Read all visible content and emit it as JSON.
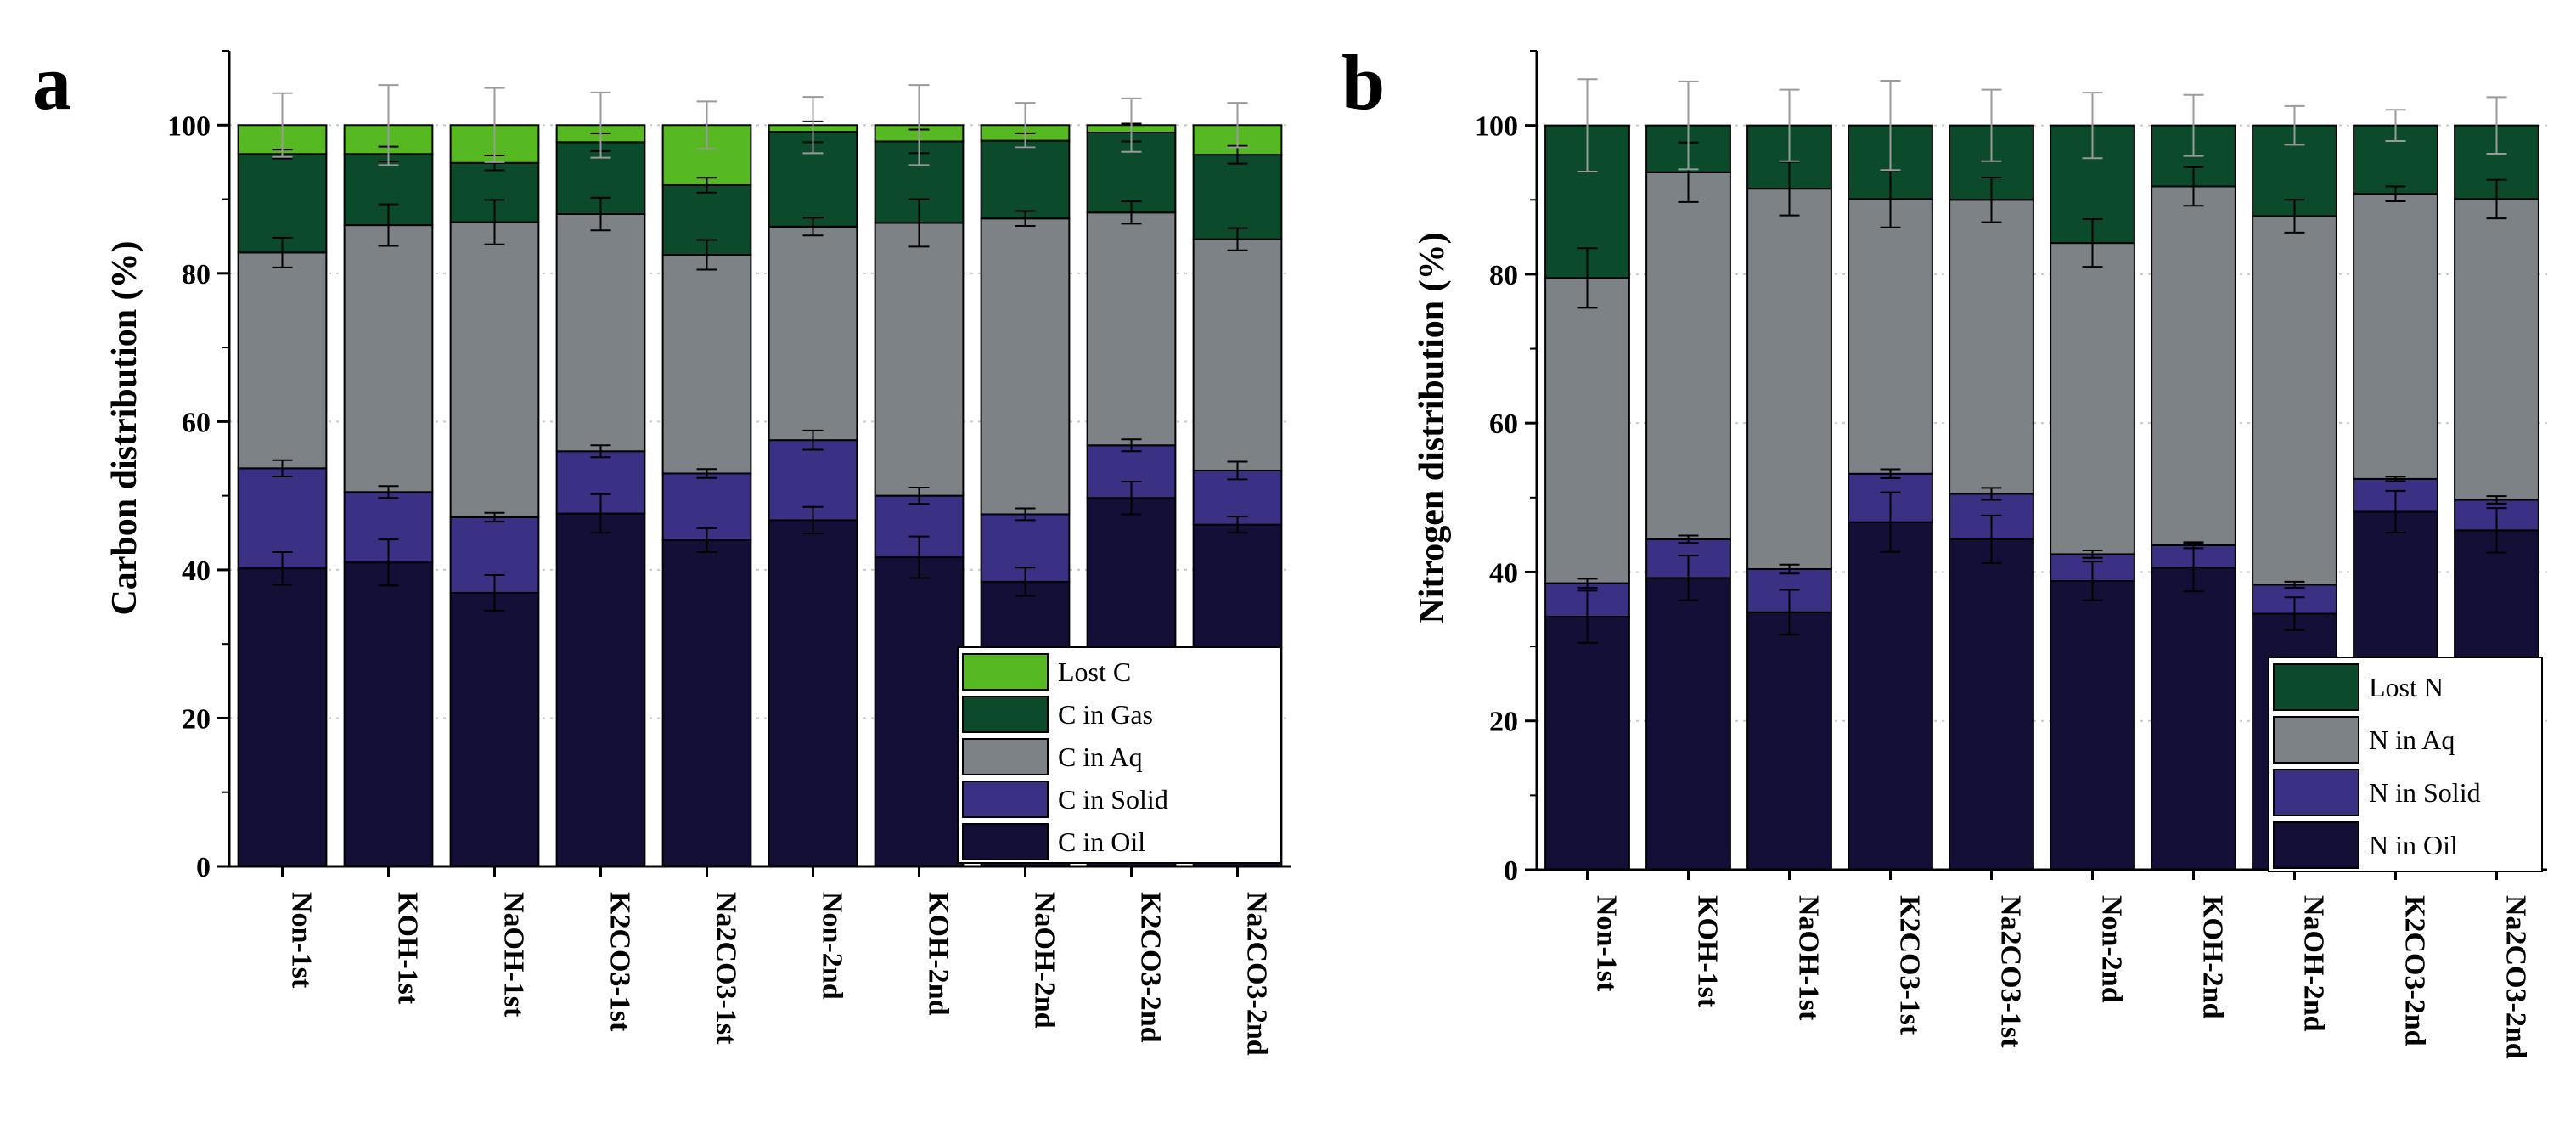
{
  "colors": {
    "oil": "#130f36",
    "solid": "#3a3185",
    "aq": "#7d8287",
    "gas": "#0b4a2a",
    "lost_c": "#57b922",
    "lost_n": "#0b4a2a",
    "error": "#888888",
    "grid": "#c8c8c8"
  },
  "chart_data": [
    {
      "type": "bar",
      "stacked": true,
      "panel_label": "a",
      "title": "",
      "xlabel": "",
      "ylabel": "Carbon distribution (%)",
      "ylim": [
        0,
        110
      ],
      "yticks": [
        "0",
        "20",
        "40",
        "60",
        "80",
        "100"
      ],
      "grid": "horizontal dotted",
      "legend_position": "bottom-right",
      "legend_order": [
        "Lost C",
        "C in Gas",
        "C in Aq",
        "C in Solid",
        "C in Oil"
      ],
      "categories": [
        "Non-1st",
        "KOH-1st",
        "NaOH-1st",
        "K2CO3-1st",
        "Na2CO3-1st",
        "Non-2nd",
        "KOH-2nd",
        "NaOH-2nd",
        "K2CO3-2nd",
        "Na2CO3-2nd"
      ],
      "series": [
        {
          "name": "C in Oil",
          "color_key": "oil",
          "values": [
            40.2,
            41.0,
            36.9,
            47.6,
            44.0,
            46.7,
            41.7,
            38.4,
            49.7,
            46.1
          ],
          "errors": [
            2.2,
            3.1,
            2.4,
            2.6,
            1.6,
            1.8,
            2.8,
            1.9,
            2.2,
            1.1
          ]
        },
        {
          "name": "C in Solid",
          "color_key": "solid",
          "values": [
            13.5,
            9.5,
            10.2,
            8.4,
            9.0,
            10.8,
            8.3,
            9.1,
            7.1,
            7.3
          ],
          "errors": [
            1.1,
            0.8,
            0.6,
            0.8,
            0.6,
            1.3,
            1.1,
            0.8,
            0.8,
            1.2
          ]
        },
        {
          "name": "C in Aq",
          "color_key": "aq",
          "values": [
            29.1,
            36.0,
            39.8,
            32.0,
            29.5,
            28.8,
            36.8,
            39.9,
            31.4,
            31.2
          ],
          "errors": [
            2.0,
            2.8,
            3.0,
            2.2,
            2.0,
            1.2,
            3.2,
            1.0,
            1.5,
            1.5
          ]
        },
        {
          "name": "C in Gas",
          "color_key": "gas",
          "values": [
            13.3,
            9.6,
            8.0,
            9.7,
            9.4,
            12.8,
            11.0,
            10.5,
            10.8,
            11.4
          ],
          "errors": [
            0.6,
            1.0,
            1.0,
            1.2,
            1.0,
            1.4,
            1.6,
            1.0,
            1.2,
            1.2
          ]
        },
        {
          "name": "Lost C",
          "color_key": "lost_c",
          "values": [
            3.9,
            3.9,
            5.1,
            2.3,
            8.1,
            0.9,
            2.2,
            2.1,
            1.0,
            4.0
          ],
          "errors": [
            4.3,
            5.4,
            5.0,
            4.4,
            3.2,
            3.8,
            5.4,
            3.0,
            3.6,
            3.0
          ]
        }
      ]
    },
    {
      "type": "bar",
      "stacked": true,
      "panel_label": "b",
      "title": "",
      "xlabel": "",
      "ylabel": "Nitrogen distribution (%)",
      "ylim": [
        0,
        110
      ],
      "yticks": [
        "0",
        "20",
        "40",
        "60",
        "80",
        "100"
      ],
      "grid": "horizontal dotted",
      "legend_position": "bottom-right",
      "legend_order": [
        "Lost N",
        "N in Aq",
        "N in Solid",
        "N in Oil"
      ],
      "categories": [
        "Non-1st",
        "KOH-1st",
        "NaOH-1st",
        "K2CO3-1st",
        "Na2CO3-1st",
        "Non-2nd",
        "KOH-2nd",
        "NaOH-2nd",
        "K2CO3-2nd",
        "Na2CO3-2nd"
      ],
      "series": [
        {
          "name": "N in Oil",
          "color_key": "oil",
          "values": [
            34.0,
            39.2,
            34.6,
            46.7,
            44.4,
            38.8,
            40.6,
            34.4,
            48.1,
            45.6
          ],
          "errors": [
            3.5,
            3.0,
            3.0,
            4.0,
            3.2,
            2.6,
            3.2,
            2.2,
            2.8,
            3.0
          ]
        },
        {
          "name": "N in Solid",
          "color_key": "solid",
          "values": [
            4.5,
            5.2,
            5.8,
            6.5,
            6.1,
            3.6,
            3.0,
            3.9,
            4.4,
            4.1
          ],
          "errors": [
            0.6,
            0.5,
            0.6,
            0.6,
            0.8,
            0.5,
            0.4,
            0.4,
            0.3,
            0.5
          ]
        },
        {
          "name": "N in Aq",
          "color_key": "aq",
          "values": [
            41.0,
            49.3,
            51.1,
            36.9,
            39.5,
            41.8,
            48.2,
            49.5,
            38.3,
            40.4
          ],
          "errors": [
            4.0,
            4.0,
            3.6,
            3.8,
            3.0,
            3.2,
            2.6,
            2.2,
            1.0,
            2.6
          ]
        },
        {
          "name": "Lost N",
          "color_key": "lost_n",
          "values": [
            20.5,
            6.3,
            8.5,
            9.9,
            10.0,
            15.8,
            8.2,
            12.2,
            9.2,
            9.9
          ],
          "errors": [
            6.2,
            5.9,
            4.8,
            6.0,
            4.8,
            4.4,
            4.1,
            2.6,
            2.1,
            3.8
          ]
        }
      ]
    }
  ]
}
